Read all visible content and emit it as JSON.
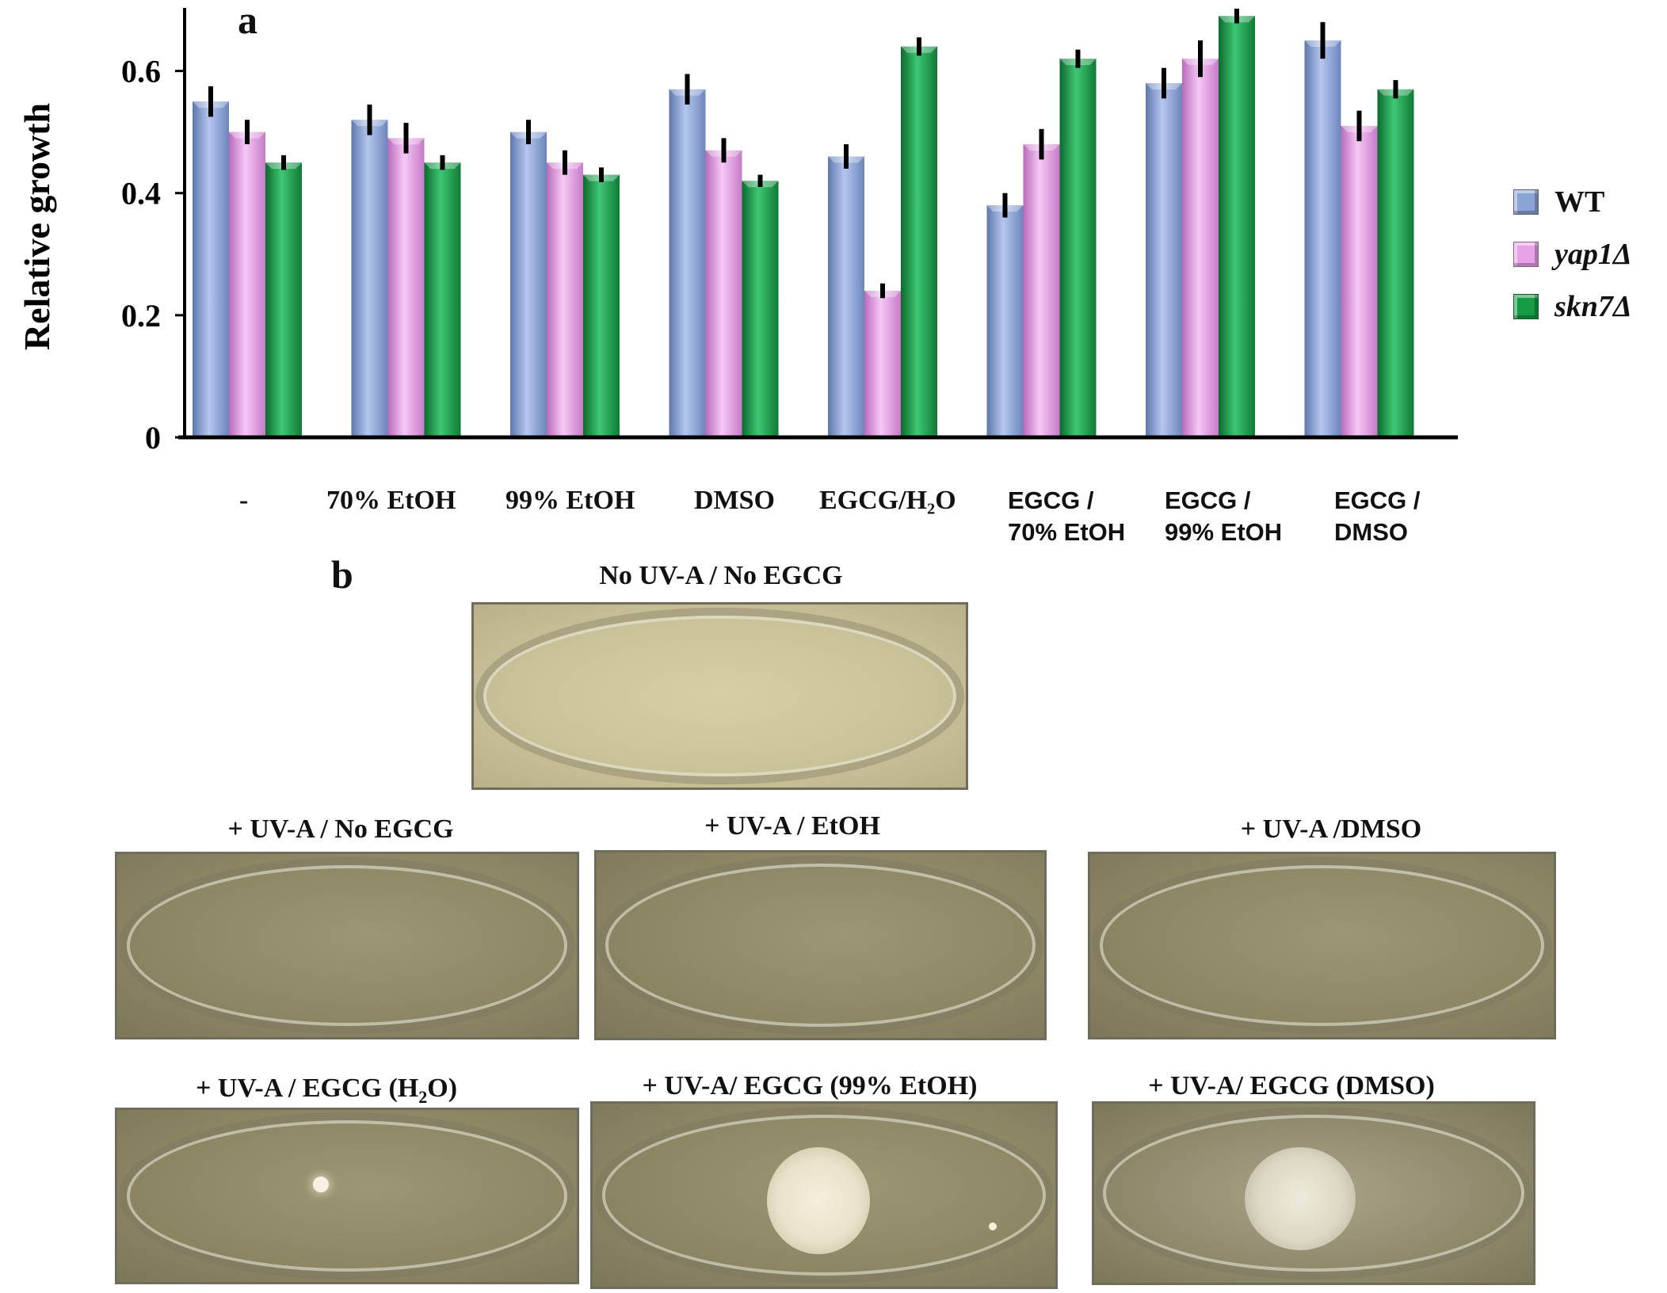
{
  "colors": {
    "WT": "#8ca3d6",
    "yap1": "#e7a2e7",
    "skn7": "#159a45",
    "axis": "#000000",
    "plate_light": "#cdc59c",
    "plate_dark": "#8e8867",
    "colony": "#f2ecda"
  },
  "panel_a": {
    "letter": "a"
  },
  "panel_b": {
    "letter": "b"
  },
  "chart_data": {
    "type": "bar",
    "ylabel": "Relative growth",
    "ylim": [
      0,
      0.7
    ],
    "yticks": [
      {
        "value": 0,
        "label": "0"
      },
      {
        "value": 0.2,
        "label": "0.2"
      },
      {
        "value": 0.4,
        "label": "0.4"
      },
      {
        "value": 0.6,
        "label": "0.6"
      }
    ],
    "categories": [
      "-",
      "70% EtOH",
      "99% EtOH",
      "DMSO",
      "EGCG/H2O",
      "EGCG / 70% EtOH",
      "EGCG / 99% EtOH",
      "EGCG / DMSO"
    ],
    "category_label_lines": [
      [
        "-"
      ],
      [
        "70% EtOH"
      ],
      [
        "99% EtOH"
      ],
      [
        "DMSO"
      ],
      [
        "EGCG/H₂O"
      ],
      [
        "EGCG /",
        "70% EtOH"
      ],
      [
        "EGCG /",
        "99% EtOH"
      ],
      [
        "EGCG /",
        "DMSO"
      ]
    ],
    "series": [
      {
        "name": "WT",
        "values": [
          0.55,
          0.52,
          0.5,
          0.57,
          0.46,
          0.38,
          0.58,
          0.65
        ],
        "errors": [
          0.025,
          0.025,
          0.02,
          0.025,
          0.02,
          0.02,
          0.025,
          0.03
        ]
      },
      {
        "name": "yap1Δ",
        "values": [
          0.5,
          0.49,
          0.45,
          0.47,
          0.24,
          0.48,
          0.62,
          0.51
        ],
        "errors": [
          0.02,
          0.025,
          0.02,
          0.02,
          0.012,
          0.025,
          0.03,
          0.025
        ]
      },
      {
        "name": "skn7Δ",
        "values": [
          0.45,
          0.45,
          0.43,
          0.42,
          0.64,
          0.62,
          0.69,
          0.57
        ],
        "errors": [
          0.012,
          0.012,
          0.012,
          0.01,
          0.015,
          0.015,
          0.012,
          0.015
        ]
      }
    ],
    "legend_position": "right",
    "grid": false,
    "error_bars": true
  },
  "plates": [
    {
      "title": "No UV-A / No EGCG",
      "growth": "lawn"
    },
    {
      "title": "+ UV-A / No EGCG",
      "growth": "none"
    },
    {
      "title": "+ UV-A / EtOH",
      "growth": "none"
    },
    {
      "title": "+ UV-A /DMSO",
      "growth": "none"
    },
    {
      "title_pre": "+ UV-A / EGCG (H",
      "title_sub": "2",
      "title_post": "O)",
      "growth": "single colony"
    },
    {
      "title": "+ UV-A/ EGCG (99% EtOH)",
      "growth": "spot"
    },
    {
      "title": "+ UV-A/ EGCG (DMSO)",
      "growth": "spot"
    }
  ]
}
